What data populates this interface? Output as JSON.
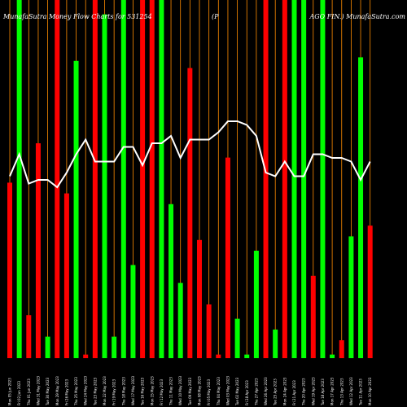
{
  "header": {
    "left": "MunafaSutra Money Flow Charts for 531254",
    "middle": "(P",
    "right": "AGO FIN.) MunafaSutra.com"
  },
  "colors": {
    "background": "#000000",
    "bullish": "#00ff00",
    "bearish": "#ff0000",
    "vline": "#ff8c00",
    "mfi_line": "#ffffff",
    "text": "#ffffff"
  },
  "chart_data": {
    "type": "bar",
    "title": "MunafaSutra Money Flow Charts for 531254",
    "ylim": [
      0,
      100
    ],
    "bars": [
      {
        "label": "Mon 05 Jun 2023",
        "color": "red",
        "value": 49,
        "line": 53
      },
      {
        "label": "Fri 02 Jun 2023",
        "color": "green",
        "value": 100,
        "line": 59
      },
      {
        "label": "Thu 01 Jun 2023",
        "color": "red",
        "value": 12,
        "line": 51
      },
      {
        "label": "Wed 31 May 2023",
        "color": "red",
        "value": 60,
        "line": 52
      },
      {
        "label": "Tue 30 May 2023",
        "color": "green",
        "value": 6,
        "line": 52
      },
      {
        "label": "Mon 29 May 2023",
        "color": "red",
        "value": 100,
        "line": 50
      },
      {
        "label": "Fri 26 May 2023",
        "color": "red",
        "value": 46,
        "line": 54
      },
      {
        "label": "Thu 25 May 2023",
        "color": "green",
        "value": 83,
        "line": 59
      },
      {
        "label": "Wed 24 May 2023",
        "color": "red",
        "value": 1,
        "line": 63
      },
      {
        "label": "Tue 23 May 2023",
        "color": "red",
        "value": 100,
        "line": 57
      },
      {
        "label": "Mon 22 May 2023",
        "color": "green",
        "value": 96,
        "line": 57
      },
      {
        "label": "Fri 19 May 2023",
        "color": "green",
        "value": 6,
        "line": 57
      },
      {
        "label": "Thu 18 May 2023",
        "color": "green",
        "value": 100,
        "line": 61
      },
      {
        "label": "Wed 17 May 2023",
        "color": "green",
        "value": 26,
        "line": 61
      },
      {
        "label": "Tue 16 May 2023",
        "color": "red",
        "value": 100,
        "line": 56
      },
      {
        "label": "Mon 15 May 2023",
        "color": "red",
        "value": 100,
        "line": 62
      },
      {
        "label": "Fri 12 May 2023",
        "color": "green",
        "value": 100,
        "line": 62
      },
      {
        "label": "Thu 11 May 2023",
        "color": "green",
        "value": 43,
        "line": 64
      },
      {
        "label": "Wed 10 May 2023",
        "color": "green",
        "value": 21,
        "line": 58
      },
      {
        "label": "Tue 09 May 2023",
        "color": "red",
        "value": 81,
        "line": 63
      },
      {
        "label": "Mon 08 May 2023",
        "color": "red",
        "value": 33,
        "line": 63
      },
      {
        "label": "Fri 05 May 2023",
        "color": "red",
        "value": 15,
        "line": 63
      },
      {
        "label": "Thu 04 May 2023",
        "color": "red",
        "value": 1,
        "line": 65
      },
      {
        "label": "Wed 03 May 2023",
        "color": "red",
        "value": 56,
        "line": 68
      },
      {
        "label": "Tue 02 May 2023",
        "color": "green",
        "value": 11,
        "line": 68
      },
      {
        "label": "Fri 28 Apr 2023",
        "color": "green",
        "value": 1,
        "line": 67
      },
      {
        "label": "Thu 27 Apr 2023",
        "color": "green",
        "value": 30,
        "line": 64
      },
      {
        "label": "Wed 26 Apr 2023",
        "color": "red",
        "value": 100,
        "line": 54
      },
      {
        "label": "Tue 25 Apr 2023",
        "color": "green",
        "value": 8,
        "line": 53
      },
      {
        "label": "Mon 24 Apr 2023",
        "color": "red",
        "value": 100,
        "line": 57
      },
      {
        "label": "Fri 21 Apr 2023",
        "color": "green",
        "value": 100,
        "line": 53
      },
      {
        "label": "Thu 20 Apr 2023",
        "color": "green",
        "value": 100,
        "line": 53
      },
      {
        "label": "Wed 19 Apr 2023",
        "color": "red",
        "value": 23,
        "line": 59
      },
      {
        "label": "Tue 18 Apr 2023",
        "color": "green",
        "value": 100,
        "line": 59
      },
      {
        "label": "Mon 17 Apr 2023",
        "color": "green",
        "value": 1,
        "line": 58
      },
      {
        "label": "Thu 13 Apr 2023",
        "color": "red",
        "value": 5,
        "line": 58
      },
      {
        "label": "Wed 12 Apr 2023",
        "color": "green",
        "value": 34,
        "line": 57
      },
      {
        "label": "Tue 11 Apr 2023",
        "color": "green",
        "value": 84,
        "line": 52
      },
      {
        "label": "Mon 10 Apr 2023",
        "color": "red",
        "value": 37,
        "line": 57
      }
    ]
  }
}
